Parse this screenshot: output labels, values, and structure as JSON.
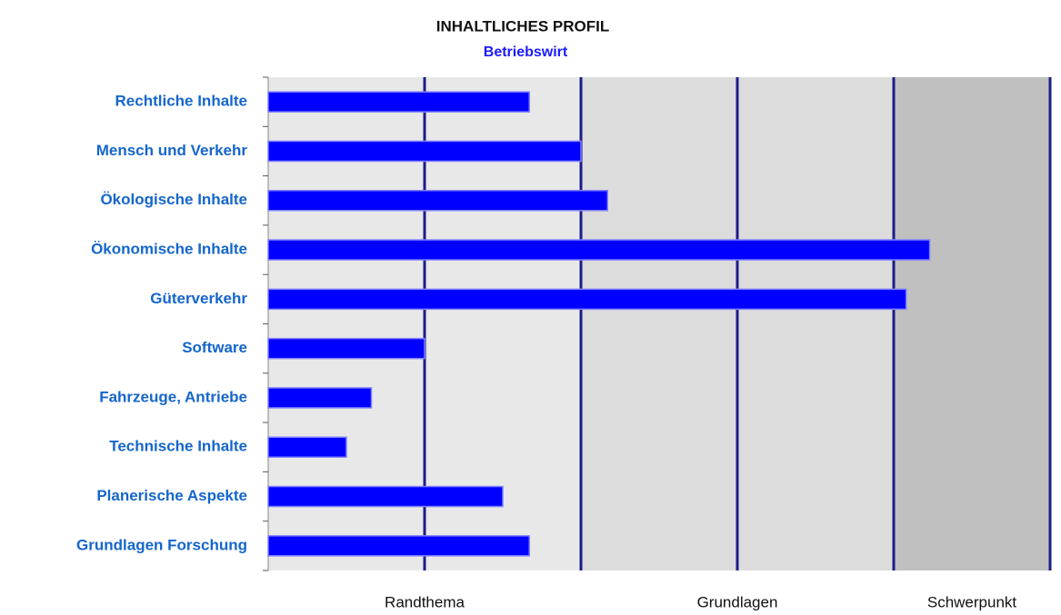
{
  "chart_data": {
    "type": "hbar",
    "title": "INHALTLICHES PROFIL",
    "subtitle": "Betriebswirt",
    "categories": [
      "Rechtliche Inhalte",
      "Mensch und Verkehr",
      "Ökologische Inhalte",
      "Ökonomische Inhalte",
      "Güterverkehr",
      "Software",
      "Fahrzeuge, Antriebe",
      "Technische Inhalte",
      "Planerische Aspekte",
      "Grundlagen Forschung"
    ],
    "values": [
      1.67,
      2.0,
      2.17,
      4.23,
      4.08,
      1.0,
      0.66,
      0.5,
      1.5,
      1.67
    ],
    "color": "#0000ff",
    "xlim": [
      0,
      5
    ],
    "xticks": [
      1,
      2,
      3,
      4,
      5
    ],
    "grid": true,
    "bands": [
      {
        "label": "Randthema",
        "from": 0,
        "to": 2,
        "color": "#e8e8e8"
      },
      {
        "label": "Grundlagen",
        "from": 2,
        "to": 4,
        "color": "#dcdcdc"
      },
      {
        "label": "Schwerpunkt",
        "from": 4,
        "to": 5,
        "color": "#c0c0c0"
      }
    ]
  }
}
